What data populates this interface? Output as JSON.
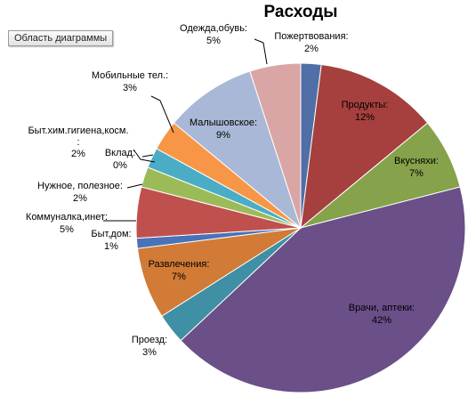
{
  "ui": {
    "chart_area_tab": "Область диаграммы"
  },
  "chart_data": {
    "type": "pie",
    "title": "Расходы",
    "slices": [
      {
        "name": "Пожертвования:",
        "value": 2,
        "pct": "2%",
        "color": "#4F6FA6"
      },
      {
        "name": "Продукты:",
        "value": 12,
        "pct": "12%",
        "color": "#A5403E"
      },
      {
        "name": "Вкусняхи:",
        "value": 7,
        "pct": "7%",
        "color": "#86A24A"
      },
      {
        "name": "Врачи, аптеки:",
        "value": 42,
        "pct": "42%",
        "color": "#6B4F88"
      },
      {
        "name": "Проезд:",
        "value": 3,
        "pct": "3%",
        "color": "#3F8FA5"
      },
      {
        "name": "Развлечения:",
        "value": 7,
        "pct": "7%",
        "color": "#D17B37"
      },
      {
        "name": "Быт,дом:",
        "value": 1,
        "pct": "1%",
        "color": "#4A72B8"
      },
      {
        "name": "Коммуналка,инет:",
        "value": 5,
        "pct": "5%",
        "color": "#C0504D"
      },
      {
        "name": "Нужное,  полезное:",
        "value": 2,
        "pct": "2%",
        "color": "#9BBB59"
      },
      {
        "name": "Вклад:",
        "value": 0,
        "pct": "0%",
        "color": "#7E62A1"
      },
      {
        "name": "Быт.хим.гигиена,косм.:",
        "value": 2,
        "pct": "2%",
        "color": "#4BACC6"
      },
      {
        "name": "Мобильные тел.:",
        "value": 3,
        "pct": "3%",
        "color": "#F79646"
      },
      {
        "name": "Малышовское:",
        "value": 9,
        "pct": "9%",
        "color": "#A9B8D6"
      },
      {
        "name": "Одежда,обувь:",
        "value": 5,
        "pct": "5%",
        "color": "#D9A6A5"
      }
    ]
  }
}
